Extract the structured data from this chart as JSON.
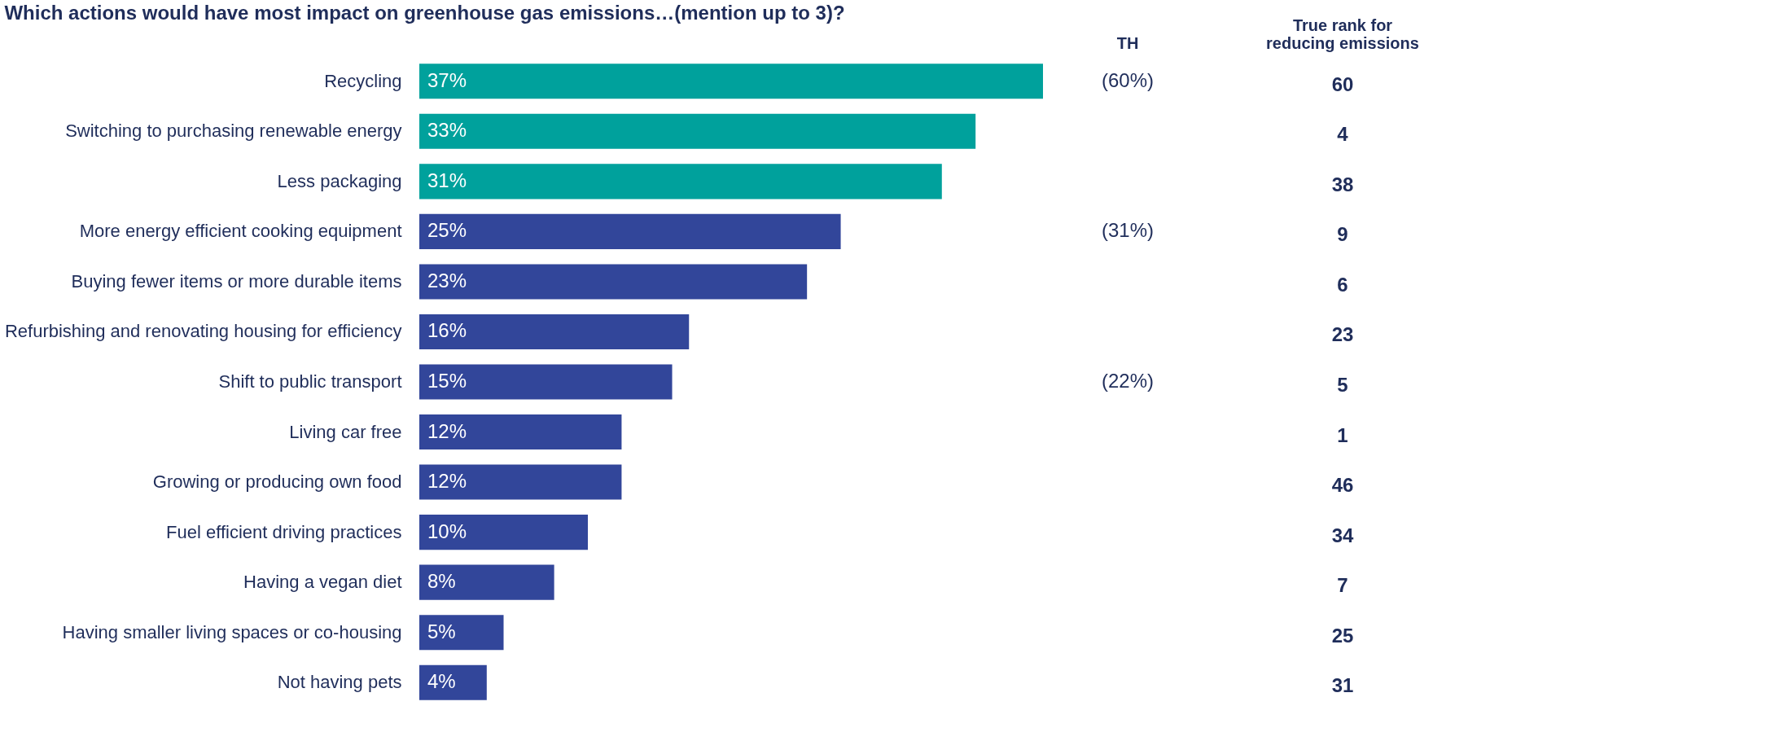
{
  "chart_data": [
    {
      "type": "bar",
      "orientation": "horizontal",
      "title": "Which actions would have most impact on greenhouse gas emissions…(mention up to 3)?",
      "categories": [
        "Recycling",
        "Switching to purchasing renewable energy",
        "Less packaging",
        "More energy efficient cooking equipment",
        "Buying fewer items or more durable items",
        "Refurbishing and renovating housing for efficiency",
        "Shift to public transport",
        "Living car free",
        "Growing or producing own food",
        "Fuel efficient driving practices",
        "Having a vegan diet",
        "Having smaller living spaces or co-housing",
        "Not having pets"
      ],
      "values": [
        37,
        33,
        31,
        25,
        23,
        16,
        15,
        12,
        12,
        10,
        8,
        5,
        4
      ],
      "value_labels": [
        "37%",
        "33%",
        "31%",
        "25%",
        "23%",
        "16%",
        "15%",
        "12%",
        "12%",
        "10%",
        "8%",
        "5%",
        "4%"
      ],
      "colors": [
        "#00a19c",
        "#00a19c",
        "#00a19c",
        "#32469a",
        "#32469a",
        "#32469a",
        "#32469a",
        "#32469a",
        "#32469a",
        "#32469a",
        "#32469a",
        "#32469a",
        "#32469a"
      ]
    },
    {
      "type": "other",
      "title": "TH",
      "annotations": [
        {
          "text": "(60%)",
          "y": "Recycling"
        },
        {
          "text": "(31%)",
          "y": "More energy efficient cooking equipment"
        },
        {
          "text": "(22%)",
          "y": "Shift to public transport"
        }
      ]
    },
    {
      "type": "other",
      "title": "True rank for reducing emissions",
      "annotations": [
        {
          "text": "60",
          "y": "Recycling"
        },
        {
          "text": "4",
          "y": "Switching to purchasing renewable energy"
        },
        {
          "text": "38",
          "y": "Less packaging"
        },
        {
          "text": "9",
          "y": "More energy efficient cooking equipment"
        },
        {
          "text": "6",
          "y": "Buying fewer items or more durable items"
        },
        {
          "text": "23",
          "y": "Refurbishing and renovating housing for efficiency"
        },
        {
          "text": "5",
          "y": "Shift to public transport"
        },
        {
          "text": "1",
          "y": "Living car free"
        },
        {
          "text": "46",
          "y": "Growing or producing own food"
        },
        {
          "text": "34",
          "y": "Fuel efficient driving practices"
        },
        {
          "text": "7",
          "y": "Having a vegan diet"
        },
        {
          "text": "25",
          "y": "Having smaller living spaces or co-housing"
        },
        {
          "text": "31",
          "y": "Not having pets"
        }
      ]
    }
  ]
}
